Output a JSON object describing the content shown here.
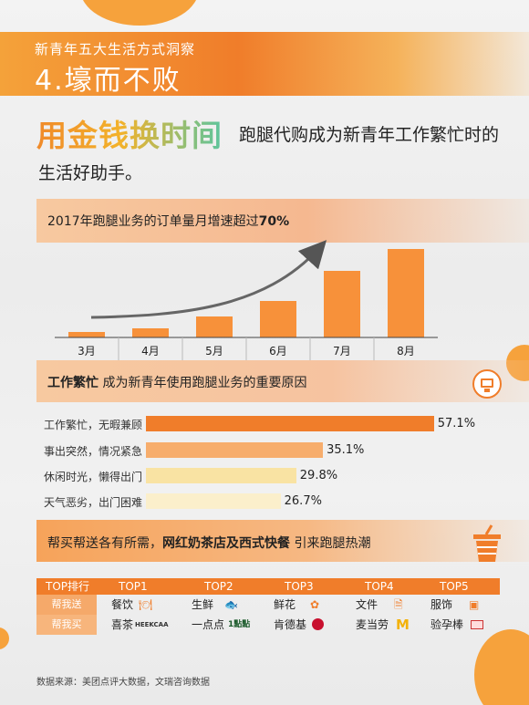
{
  "header": {
    "subtitle": "新青年五大生活方式洞察",
    "title": "4.壕而不败"
  },
  "headline": {
    "big": "用金钱换时间",
    "text_line1": "跑腿代购成为新青年工作繁忙时的",
    "text_line2": "生活好助手。"
  },
  "section1": {
    "text": "2017年跑腿业务的订单量月增速超过",
    "highlight": "70%"
  },
  "section2": {
    "highlight": "工作繁忙",
    "text": "成为新青年使用跑腿业务的重要原因"
  },
  "section3": {
    "text_before": "帮买帮送各有所需，",
    "highlight": "网红奶茶店及西式快餐",
    "text_after": "引来跑腿热潮"
  },
  "chart_data": [
    {
      "type": "bar",
      "categories": [
        "3月",
        "4月",
        "5月",
        "6月",
        "7月",
        "8月"
      ],
      "values": [
        6,
        10,
        23,
        40,
        73,
        97
      ],
      "ylim": [
        0,
        100
      ]
    },
    {
      "type": "bar",
      "orientation": "horizontal",
      "categories": [
        "工作繁忙，无暇兼顾",
        "事出突然，情况紧急",
        "休闲时光，懒得出门",
        "天气恶劣，出门困难"
      ],
      "values": [
        57.1,
        35.1,
        29.8,
        26.7
      ],
      "value_labels": [
        "57.1%",
        "35.1%",
        "29.8%",
        "26.7%"
      ],
      "colors": [
        "#f07d2a",
        "#f7ad6c",
        "#f9e3a3",
        "#fbefcb"
      ]
    }
  ],
  "top_table": {
    "header": [
      "TOP排行",
      "TOP1",
      "TOP2",
      "TOP3",
      "TOP4",
      "TOP5"
    ],
    "rows": [
      {
        "label": "帮我送",
        "items": [
          "餐饮",
          "生鲜",
          "鲜花",
          "文件",
          "服饰"
        ]
      },
      {
        "label": "帮我买",
        "items": [
          "喜茶",
          "一点点",
          "肯德基",
          "麦当劳",
          "验孕棒"
        ]
      }
    ],
    "logos": {
      "heekcaa": "HEEKCAA",
      "yidiandian": "1點點"
    }
  },
  "source": "数据来源：美团点评大数据，文瑞咨询数据"
}
